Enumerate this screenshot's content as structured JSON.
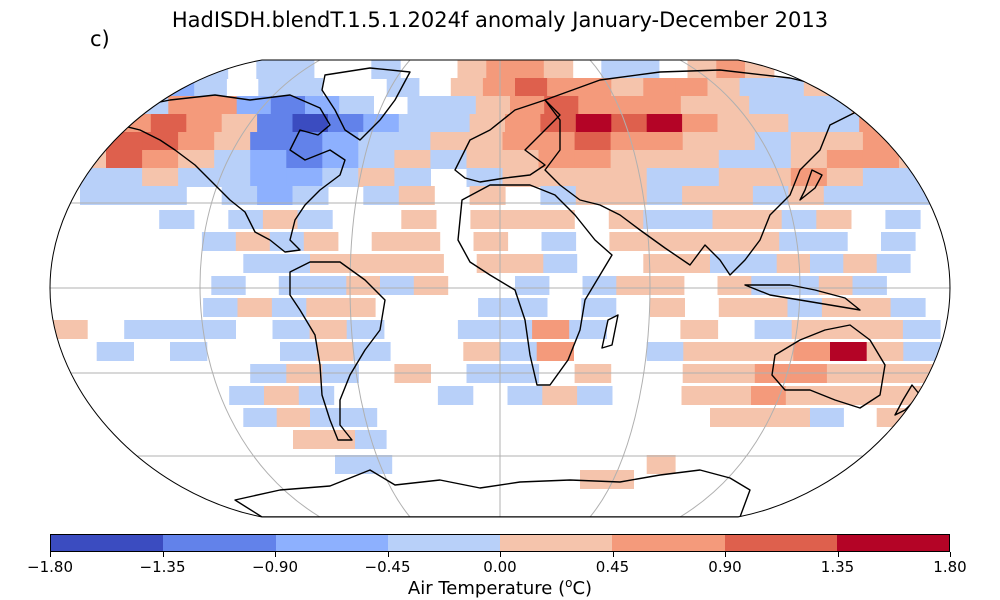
{
  "title": "HadISDH.blendT.1.5.1.2024f anomaly January-December 2013",
  "panel_label": "c)",
  "colorbar": {
    "label_prefix": "Air Temperature (",
    "label_sup": "o",
    "label_suffix": "C)",
    "ticks": [
      "−1.80",
      "−1.35",
      "−0.90",
      "−0.45",
      "0.00",
      "0.45",
      "0.90",
      "1.35",
      "1.80"
    ],
    "colors": [
      "#3b4cc0",
      "#6282ea",
      "#8db0fe",
      "#b8d0f9",
      "#f5c4ac",
      "#f49a7b",
      "#de604d",
      "#b40426"
    ]
  },
  "map": {
    "projection": "Robinson",
    "ocean_color": "#ffffff",
    "gridline_color": "#b0b0b0",
    "coastline_color": "#000000"
  }
}
